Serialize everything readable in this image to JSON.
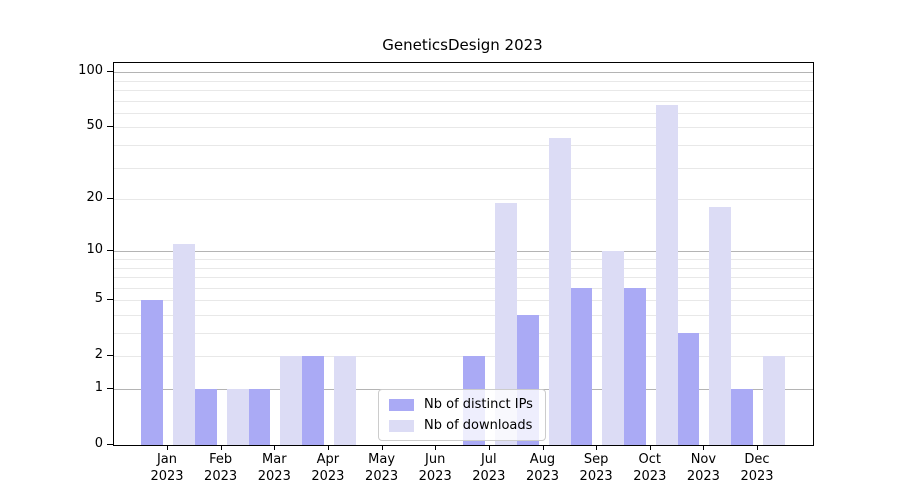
{
  "title": "GeneticsDesign 2023",
  "legend": {
    "items": [
      {
        "label": "Nb of distinct IPs",
        "color": "#aaaaf5"
      },
      {
        "label": "Nb of downloads",
        "color": "#dcdcf5"
      }
    ]
  },
  "chart_data": {
    "type": "bar",
    "title": "GeneticsDesign 2023",
    "categories": [
      "Jan 2023",
      "Feb 2023",
      "Mar 2023",
      "Apr 2023",
      "May 2023",
      "Jun 2023",
      "Jul 2023",
      "Aug 2023",
      "Sep 2023",
      "Oct 2023",
      "Nov 2023",
      "Dec 2023"
    ],
    "series": [
      {
        "name": "Nb of distinct IPs",
        "color": "#aaaaf5",
        "values": [
          5,
          1,
          1,
          2,
          0,
          0,
          2,
          4,
          6,
          6,
          3,
          1
        ]
      },
      {
        "name": "Nb of downloads",
        "color": "#dcdcf5",
        "values": [
          11,
          1,
          2,
          2,
          0,
          0,
          19,
          44,
          10,
          66,
          18,
          2
        ]
      }
    ],
    "xlabel": "",
    "ylabel": "",
    "yscale": "log1p",
    "ylim": [
      0,
      112
    ],
    "yticks": [
      0,
      1,
      2,
      5,
      10,
      20,
      50,
      100
    ],
    "major_gridlines": [
      1,
      10,
      100
    ],
    "minor_gridlines": [
      2,
      3,
      4,
      5,
      6,
      7,
      8,
      9,
      20,
      30,
      40,
      50,
      60,
      70,
      80,
      90
    ],
    "grid": "on",
    "legend_position": "lower center"
  }
}
